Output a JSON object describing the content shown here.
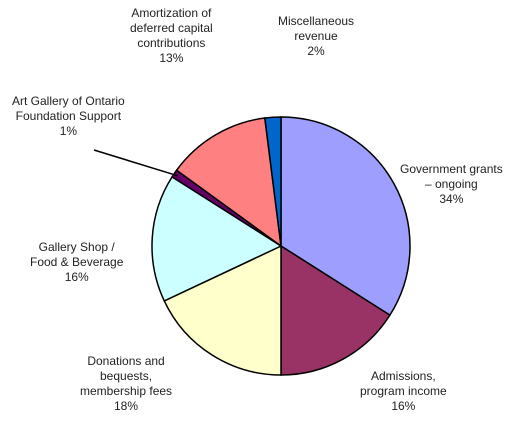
{
  "chart_data": {
    "type": "pie",
    "title": "",
    "slices": [
      {
        "label": "Government grants\n– ongoing",
        "percent_label": "34%",
        "value": 34,
        "color": "#9e9eff"
      },
      {
        "label": "Admissions,\nprogram income",
        "percent_label": "16%",
        "value": 16,
        "color": "#993366"
      },
      {
        "label": "Donations and\nbequests,\nmembership fees",
        "percent_label": "18%",
        "value": 18,
        "color": "#ffffcc"
      },
      {
        "label": "Gallery Shop /\nFood & Beverage",
        "percent_label": "16%",
        "value": 16,
        "color": "#ccffff"
      },
      {
        "label": "Art Gallery of Ontario\nFoundation Support",
        "percent_label": "1%",
        "value": 1,
        "color": "#660066"
      },
      {
        "label": "Amortization of\ndeferred capital\ncontributions",
        "percent_label": "13%",
        "value": 13,
        "color": "#ff8080"
      },
      {
        "label": "Miscellaneous\nrevenue",
        "percent_label": "2%",
        "value": 2,
        "color": "#0066cc"
      }
    ],
    "start_angle_deg": 0,
    "direction": "clockwise",
    "legend": "none",
    "grid": false
  }
}
